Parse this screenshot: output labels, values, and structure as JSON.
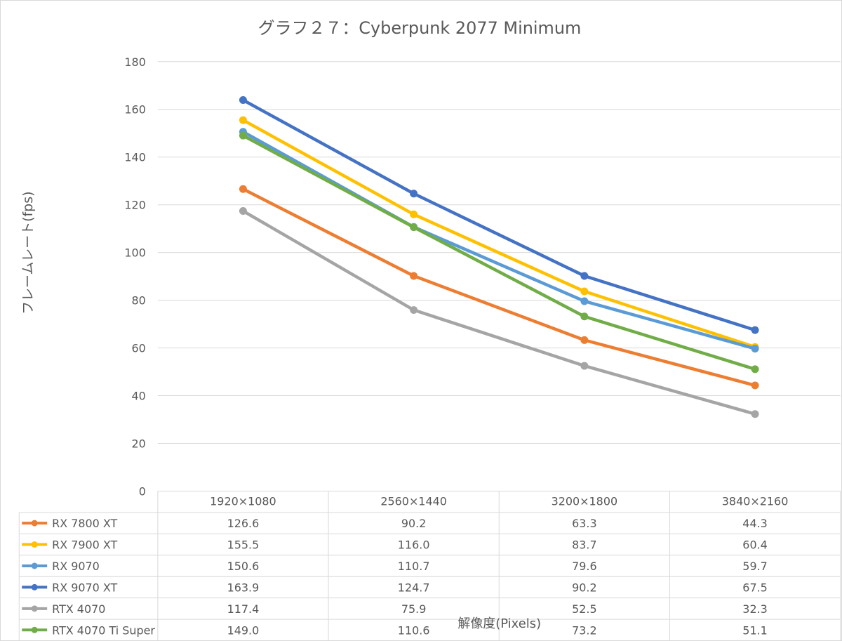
{
  "chart_data": {
    "type": "line",
    "title": "グラフ２７：Cyberpunk 2077 Minimum",
    "xlabel": "解像度(Pixels)",
    "ylabel": "フレームレート(fps)",
    "ylim": [
      0,
      180
    ],
    "yticks": [
      0,
      20,
      40,
      60,
      80,
      100,
      120,
      140,
      160,
      180
    ],
    "categories": [
      "1920×1080",
      "2560×1440",
      "3200×1800",
      "3840×2160"
    ],
    "grid": true,
    "legend": "data-table",
    "series": [
      {
        "name": "RX 7800 XT",
        "color": "#ED7D31",
        "values": [
          126.6,
          90.2,
          63.3,
          44.3
        ],
        "labels": [
          "126.6",
          "90.2",
          "63.3",
          "44.3"
        ]
      },
      {
        "name": "RX 7900 XT",
        "color": "#FFC000",
        "values": [
          155.5,
          116.0,
          83.7,
          60.4
        ],
        "labels": [
          "155.5",
          "116.0",
          "83.7",
          "60.4"
        ]
      },
      {
        "name": "RX 9070",
        "color": "#5B9BD5",
        "values": [
          150.6,
          110.7,
          79.6,
          59.7
        ],
        "labels": [
          "150.6",
          "110.7",
          "79.6",
          "59.7"
        ]
      },
      {
        "name": "RX 9070 XT",
        "color": "#4472C4",
        "values": [
          163.9,
          124.7,
          90.2,
          67.5
        ],
        "labels": [
          "163.9",
          "124.7",
          "90.2",
          "67.5"
        ]
      },
      {
        "name": "RTX 4070",
        "color": "#A5A5A5",
        "values": [
          117.4,
          75.9,
          52.5,
          32.3
        ],
        "labels": [
          "117.4",
          "75.9",
          "52.5",
          "32.3"
        ]
      },
      {
        "name": "RTX 4070 Ti Super",
        "color": "#70AD47",
        "values": [
          149.0,
          110.6,
          73.2,
          51.1
        ],
        "labels": [
          "149.0",
          "110.6",
          "73.2",
          "51.1"
        ]
      }
    ]
  }
}
